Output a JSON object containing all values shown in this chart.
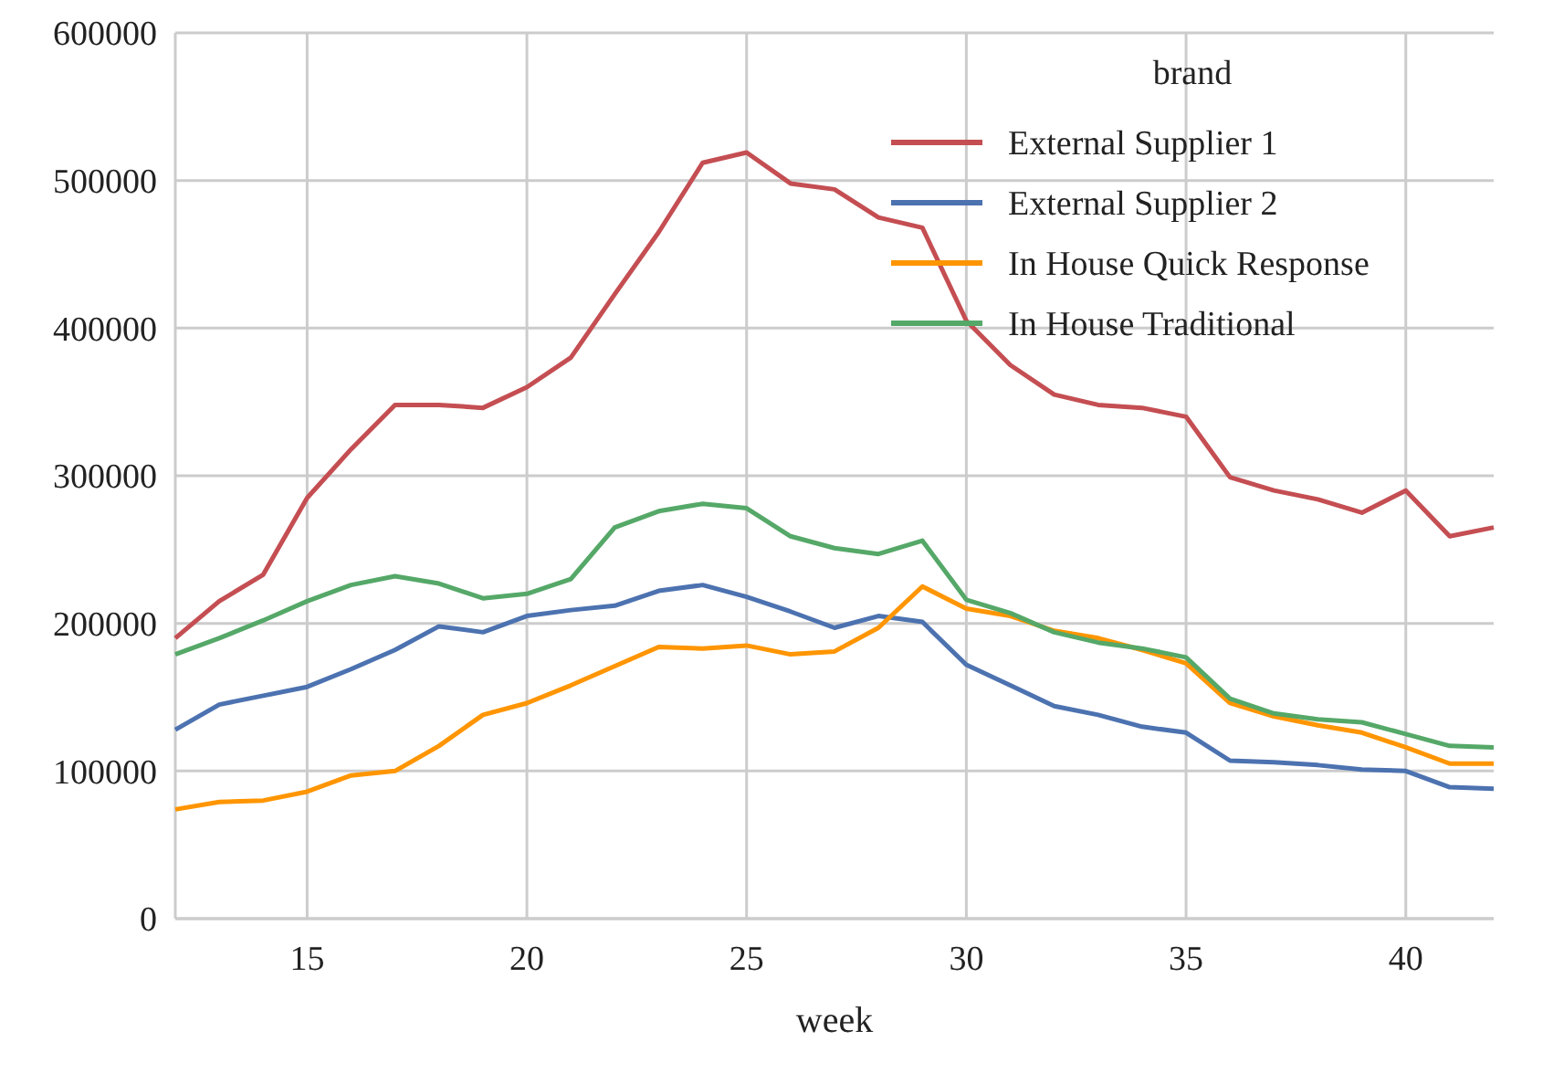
{
  "chart_data": {
    "type": "line",
    "xlabel": "week",
    "legend_title": "brand",
    "legend": "top right",
    "grid": true,
    "x": [
      12,
      13,
      14,
      15,
      16,
      17,
      18,
      19,
      20,
      21,
      22,
      23,
      24,
      25,
      26,
      27,
      28,
      29,
      30,
      31,
      32,
      33,
      34,
      35,
      36,
      37,
      38,
      39,
      40,
      41,
      42
    ],
    "xlim": [
      12,
      42
    ],
    "xticks": [
      15,
      20,
      25,
      30,
      35,
      40
    ],
    "ylim": [
      0,
      600000
    ],
    "yticks": [
      0,
      100000,
      200000,
      300000,
      400000,
      500000,
      600000
    ],
    "series": [
      {
        "name": "External Supplier 1",
        "color": "#c44e52",
        "values": [
          190000,
          215000,
          233000,
          285000,
          318000,
          348000,
          348000,
          346000,
          360000,
          380000,
          423000,
          465000,
          512000,
          519000,
          498000,
          494000,
          475000,
          468000,
          405000,
          375000,
          355000,
          348000,
          346000,
          340000,
          299000,
          290000,
          284000,
          275000,
          290000,
          259000,
          265000
        ]
      },
      {
        "name": "External Supplier 2",
        "color": "#4c72b0",
        "values": [
          128000,
          145000,
          151000,
          157000,
          169000,
          182000,
          198000,
          194000,
          205000,
          209000,
          212000,
          222000,
          226000,
          218000,
          208000,
          197000,
          205000,
          201000,
          172000,
          158000,
          144000,
          138000,
          130000,
          126000,
          107000,
          106000,
          104000,
          101000,
          100000,
          89000,
          88000
        ]
      },
      {
        "name": "In House Quick Response",
        "color": "#ff9500",
        "values": [
          74000,
          79000,
          80000,
          86000,
          97000,
          100000,
          117000,
          138000,
          146000,
          158000,
          171000,
          184000,
          183000,
          185000,
          179000,
          181000,
          197000,
          225000,
          210000,
          205000,
          195000,
          190000,
          182000,
          173000,
          146000,
          137000,
          131000,
          126000,
          116000,
          105000,
          105000
        ]
      },
      {
        "name": "In House Traditional",
        "color": "#55a868",
        "values": [
          179000,
          190000,
          202000,
          215000,
          226000,
          232000,
          227000,
          217000,
          220000,
          230000,
          265000,
          276000,
          281000,
          278000,
          259000,
          251000,
          247000,
          256000,
          216000,
          207000,
          194000,
          187000,
          183000,
          177000,
          149000,
          139000,
          135000,
          133000,
          125000,
          117000,
          116000
        ]
      }
    ]
  }
}
